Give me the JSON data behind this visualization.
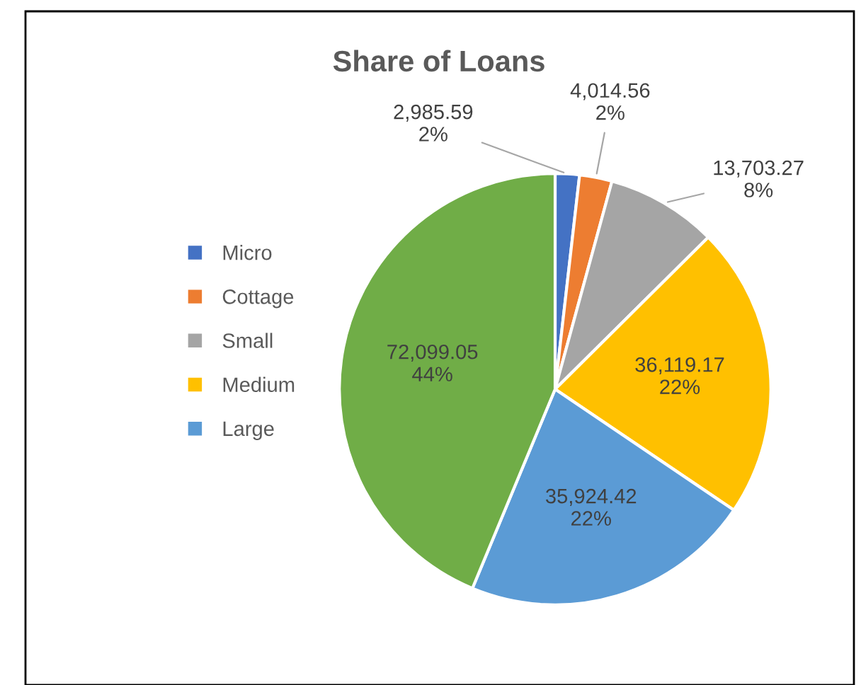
{
  "chart_data": {
    "type": "pie",
    "title": "Share of Loans",
    "categories": [
      "Micro",
      "Cottage",
      "Small",
      "Medium",
      "Large",
      null
    ],
    "values": [
      2985.59,
      4014.56,
      13703.27,
      36119.17,
      35924.42,
      72099.05
    ],
    "value_labels": [
      "2,985.59\n2%",
      "4,014.56\n2%",
      "13,703.27\n8%",
      "36,119.17\n22%",
      "35,924.42\n22%",
      "72,099.05\n44%"
    ],
    "colors": [
      "#4472c4",
      "#ed7d31",
      "#a5a5a5",
      "#ffc000",
      "#5b9bd5",
      "#70ad47"
    ],
    "legend": "left"
  }
}
